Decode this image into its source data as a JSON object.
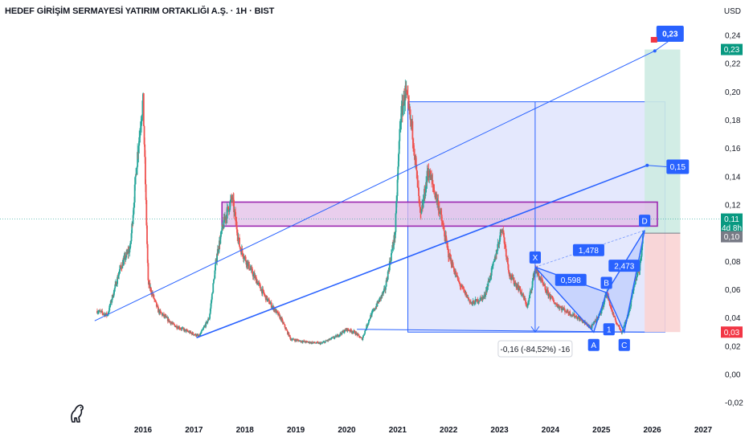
{
  "header": {
    "title": "HEDEF GİRİŞİM SERMAYESİ YATIRIM ORTAKLIĞI A.Ş. · 1H · BIST",
    "currency": "USD"
  },
  "colors": {
    "up": "#26a69a",
    "down": "#ef5350",
    "trend_line": "#2962ff",
    "zone_border": "#9c27b0",
    "zone_fill": "#e1bee7",
    "range_fill": "#dfe4fd",
    "target_fill": "#cdebe2",
    "stop_fill": "#fad4d4",
    "label_blue": "#2962ff",
    "current_price_bg": "#089981",
    "stop_badge_bg": "#f23645",
    "gray_badge_bg": "#787b86"
  },
  "chart_data": {
    "type": "candlestick",
    "x_axis": {
      "ticks": [
        "2016",
        "2017",
        "2018",
        "2019",
        "2020",
        "2021",
        "2022",
        "2023",
        "2024",
        "2025",
        "2026",
        "2027"
      ],
      "range": [
        2015.0,
        2027.5
      ]
    },
    "y_axis": {
      "ticks": [
        "0,24",
        "0,22",
        "0,20",
        "0,18",
        "0,16",
        "0,14",
        "0,12",
        "0,10",
        "0,08",
        "0,06",
        "0,04",
        "0,02",
        "0,00",
        "-0,02"
      ],
      "range": [
        -0.025,
        0.255
      ]
    },
    "price_path": [
      [
        2015.1,
        0.045
      ],
      [
        2015.3,
        0.042
      ],
      [
        2015.55,
        0.075
      ],
      [
        2015.75,
        0.09
      ],
      [
        2015.9,
        0.16
      ],
      [
        2016.0,
        0.195
      ],
      [
        2016.1,
        0.065
      ],
      [
        2016.3,
        0.045
      ],
      [
        2016.6,
        0.035
      ],
      [
        2016.9,
        0.03
      ],
      [
        2017.1,
        0.027
      ],
      [
        2017.3,
        0.04
      ],
      [
        2017.45,
        0.085
      ],
      [
        2017.6,
        0.11
      ],
      [
        2017.75,
        0.125
      ],
      [
        2017.9,
        0.09
      ],
      [
        2018.1,
        0.075
      ],
      [
        2018.4,
        0.055
      ],
      [
        2018.7,
        0.04
      ],
      [
        2018.9,
        0.025
      ],
      [
        2019.2,
        0.023
      ],
      [
        2019.5,
        0.022
      ],
      [
        2019.8,
        0.027
      ],
      [
        2020.0,
        0.032
      ],
      [
        2020.15,
        0.03
      ],
      [
        2020.3,
        0.025
      ],
      [
        2020.45,
        0.04
      ],
      [
        2020.6,
        0.05
      ],
      [
        2020.75,
        0.06
      ],
      [
        2020.95,
        0.1
      ],
      [
        2021.05,
        0.18
      ],
      [
        2021.15,
        0.2
      ],
      [
        2021.3,
        0.17
      ],
      [
        2021.45,
        0.11
      ],
      [
        2021.6,
        0.145
      ],
      [
        2021.8,
        0.12
      ],
      [
        2022.0,
        0.085
      ],
      [
        2022.2,
        0.065
      ],
      [
        2022.45,
        0.05
      ],
      [
        2022.7,
        0.055
      ],
      [
        2022.9,
        0.08
      ],
      [
        2023.05,
        0.105
      ],
      [
        2023.2,
        0.07
      ],
      [
        2023.4,
        0.06
      ],
      [
        2023.55,
        0.048
      ],
      [
        2023.7,
        0.075
      ],
      [
        2023.9,
        0.06
      ],
      [
        2024.1,
        0.05
      ],
      [
        2024.3,
        0.045
      ],
      [
        2024.55,
        0.04
      ],
      [
        2024.8,
        0.033
      ],
      [
        2025.0,
        0.045
      ],
      [
        2025.1,
        0.058
      ],
      [
        2025.25,
        0.04
      ],
      [
        2025.4,
        0.03
      ],
      [
        2025.55,
        0.045
      ],
      [
        2025.65,
        0.065
      ],
      [
        2025.75,
        0.075
      ],
      [
        2025.82,
        0.1
      ]
    ],
    "trend_lines": [
      {
        "from": [
          2015.05,
          0.038
        ],
        "to": [
          2026.05,
          0.229
        ]
      },
      {
        "from": [
          2017.05,
          0.026
        ],
        "to": [
          2025.9,
          0.148
        ]
      },
      {
        "from": [
          2020.2,
          0.032
        ],
        "to": [
          2025.85,
          0.03
        ]
      }
    ],
    "resistance_zone": {
      "x": [
        2017.55,
        2026.1
      ],
      "y": [
        0.105,
        0.122
      ]
    },
    "range_box": {
      "x": [
        2021.2,
        2026.25
      ],
      "y": [
        0.03,
        0.193
      ]
    },
    "range_measure": {
      "x": 2023.7,
      "label": "-0,16 (-84,52%) -16"
    },
    "long_position": {
      "x": [
        2025.85,
        2026.55
      ],
      "target": 0.23,
      "entry": 0.1,
      "stop": 0.03
    },
    "harmonic_pattern": {
      "points": [
        {
          "name": "X",
          "x": 2023.7,
          "y": 0.076
        },
        {
          "name": "A",
          "x": 2024.85,
          "y": 0.03
        },
        {
          "name": "B",
          "x": 2025.1,
          "y": 0.058
        },
        {
          "name": "C",
          "x": 2025.45,
          "y": 0.03
        },
        {
          "name": "D",
          "x": 2025.85,
          "y": 0.102
        }
      ],
      "ratios": [
        {
          "label": "0,598",
          "x": 2024.4,
          "y": 0.067
        },
        {
          "label": "1,478",
          "x": 2024.75,
          "y": 0.088
        },
        {
          "label": "2,473",
          "x": 2025.45,
          "y": 0.077
        }
      ],
      "extra_label": {
        "name": "1",
        "x": 2025.15,
        "y": 0.032
      }
    },
    "callouts": [
      {
        "label": "0,23",
        "x": 2026.35,
        "y": 0.24
      },
      {
        "label": "0,15",
        "x": 2026.5,
        "y": 0.147
      }
    ],
    "price_badges": [
      {
        "label": "0,23",
        "y": 0.23,
        "kind": "target"
      },
      {
        "label": "0,11",
        "y": 0.11,
        "kind": "current"
      },
      {
        "label": "4d 8h",
        "y": 0.104,
        "kind": "countdown"
      },
      {
        "label": "0,10",
        "y": 0.0975,
        "kind": "entry"
      },
      {
        "label": "0,03",
        "y": 0.03,
        "kind": "stop"
      }
    ]
  }
}
